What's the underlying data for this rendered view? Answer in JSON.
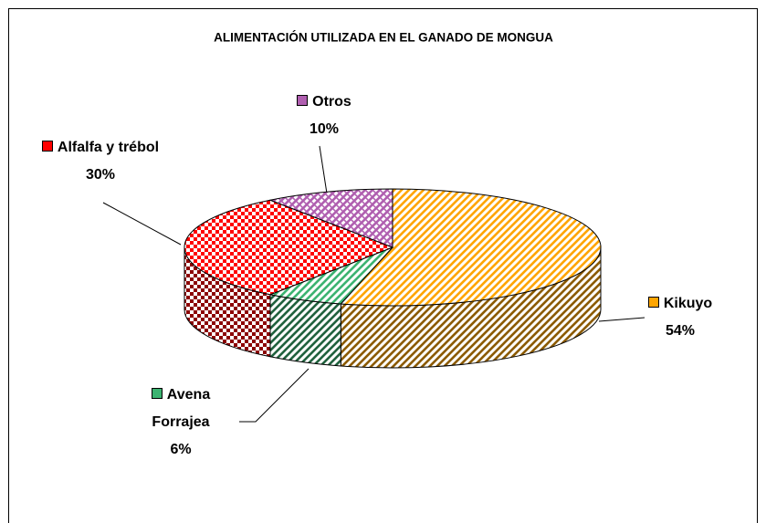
{
  "chart_data": {
    "type": "pie3d",
    "title": "ALIMENTACIÓN UTILIZADA EN EL GANADO DE MONGUA",
    "categories": [
      "Kikuyo",
      "Avena Forrajea",
      "Alfalfa y trébol",
      "Otros"
    ],
    "values": [
      54,
      6,
      30,
      10
    ],
    "value_labels": [
      "54%",
      "6%",
      "30%",
      "10%"
    ],
    "colors": [
      "#ffa500",
      "#3cb371",
      "#ff0000",
      "#b05fb0"
    ]
  }
}
